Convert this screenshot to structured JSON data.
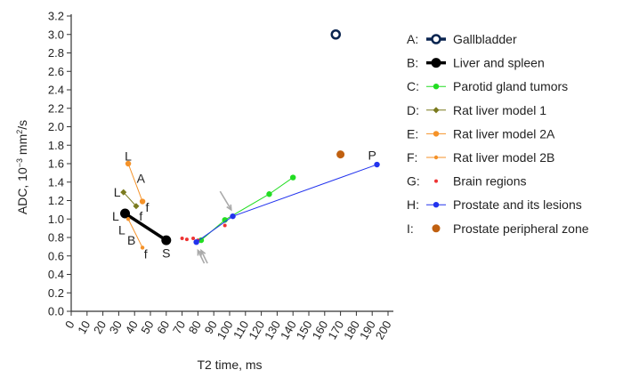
{
  "chart_data": {
    "type": "scatter",
    "xlabel": "T2 time, ms",
    "ylabel": {
      "pre": "ADC, 10",
      "sup1": "−3",
      "mid": " mm",
      "sup2": "2",
      "post": "/s"
    },
    "xlim": [
      0,
      200
    ],
    "ylim": [
      0,
      3.2
    ],
    "xticks": [
      "0",
      "10",
      "20",
      "30",
      "40",
      "50",
      "60",
      "70",
      "80",
      "90",
      "100",
      "110",
      "120",
      "130",
      "140",
      "150",
      "160",
      "170",
      "180",
      "190",
      "200"
    ],
    "yticks": [
      "0.0",
      "0.2",
      "0.4",
      "0.6",
      "0.8",
      "1.0",
      "1.2",
      "1.4",
      "1.6",
      "1.8",
      "2.0",
      "2.2",
      "2.4",
      "2.6",
      "2.8",
      "3.0",
      "3.2"
    ],
    "grid": false,
    "legend_position": "right",
    "series": [
      {
        "key": "A:",
        "name": "Gallbladder",
        "color": "#0b2550",
        "style": "open-circle-thick",
        "points": [
          [
            165,
            3.0
          ],
          [
            167,
            3.0
          ],
          [
            169,
            3.0
          ]
        ]
      },
      {
        "key": "B:",
        "name": "Liver and spleen",
        "color": "#000000",
        "style": "filled-circle-thick",
        "points": [
          [
            34,
            1.06
          ],
          [
            60,
            0.77
          ]
        ]
      },
      {
        "key": "C:",
        "name": "Parotid gland tumors",
        "color": "#22dd22",
        "style": "dot-line",
        "points": [
          [
            82,
            0.77
          ],
          [
            97,
            0.99
          ],
          [
            125,
            1.27
          ],
          [
            140,
            1.45
          ]
        ]
      },
      {
        "key": "D:",
        "name": "Rat liver model 1",
        "color": "#7a7a1e",
        "style": "diamond-line",
        "points": [
          [
            33,
            1.29
          ],
          [
            41,
            1.14
          ]
        ]
      },
      {
        "key": "E:",
        "name": "Rat liver model 2A",
        "color": "#f59228",
        "style": "dot-line",
        "points": [
          [
            36,
            1.6
          ],
          [
            45,
            1.19
          ]
        ]
      },
      {
        "key": "F:",
        "name": "Rat liver model 2B",
        "color": "#f59228",
        "style": "small-dot-line",
        "points": [
          [
            36,
            1.0
          ],
          [
            45,
            0.69
          ]
        ]
      },
      {
        "key": "G:",
        "name": "Brain regions",
        "color": "#ee3333",
        "style": "small-dot",
        "points": [
          [
            70,
            0.79
          ],
          [
            73,
            0.78
          ],
          [
            77,
            0.79
          ],
          [
            80,
            0.77
          ],
          [
            97,
            0.93
          ]
        ]
      },
      {
        "key": "H:",
        "name": "Prostate and its lesions",
        "color": "#2233ee",
        "style": "dot-line",
        "points": [
          [
            79,
            0.75
          ],
          [
            102,
            1.03
          ],
          [
            193,
            1.59
          ]
        ]
      },
      {
        "key": "I:",
        "name": "Prostate peripheral zone",
        "color": "#c06010",
        "style": "big-dot",
        "points": [
          [
            170,
            1.7
          ]
        ]
      }
    ],
    "annotations": [
      {
        "text": "L",
        "x": 36,
        "y": 1.68
      },
      {
        "text": "A",
        "x": 44,
        "y": 1.44
      },
      {
        "text": "L",
        "x": 29,
        "y": 1.29
      },
      {
        "text": "f",
        "x": 48,
        "y": 1.13
      },
      {
        "text": "f",
        "x": 44,
        "y": 1.03
      },
      {
        "text": "L",
        "x": 28,
        "y": 1.03
      },
      {
        "text": "L",
        "x": 32,
        "y": 0.88
      },
      {
        "text": "B",
        "x": 38,
        "y": 0.77
      },
      {
        "text": "f",
        "x": 47,
        "y": 0.62
      },
      {
        "text": "S",
        "x": 60,
        "y": 0.63
      },
      {
        "text": "P",
        "x": 190,
        "y": 1.69
      }
    ],
    "arrows": [
      {
        "from": [
          94,
          1.3
        ],
        "to": [
          101,
          1.1
        ]
      },
      {
        "from": [
          86,
          0.52
        ],
        "to": [
          82,
          0.66
        ]
      },
      {
        "from": [
          84,
          0.52
        ],
        "to": [
          80,
          0.66
        ]
      }
    ]
  }
}
